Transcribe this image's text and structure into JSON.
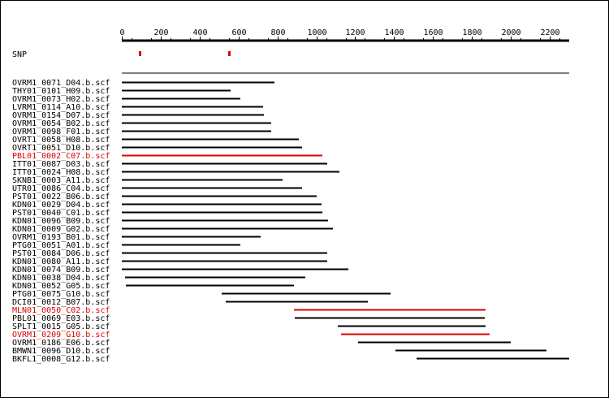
{
  "chart_data": {
    "type": "bar",
    "title": "",
    "xlabel": "",
    "ylabel": "",
    "xlim": [
      0,
      2300
    ],
    "ticks": [
      0,
      200,
      400,
      600,
      800,
      1000,
      1200,
      1400,
      1600,
      1800,
      2000,
      2200
    ],
    "grid": false,
    "snp_label": "SNP",
    "snp_positions": [
      93,
      550
    ],
    "highlight_color": "#e00000",
    "default_color": "#000000",
    "reads": [
      {
        "name": "OVRM1_0071_D04.b.scf",
        "start": 0,
        "end": 785,
        "highlight": false
      },
      {
        "name": "THY01_0101_H09.b.scf",
        "start": 0,
        "end": 560,
        "highlight": false
      },
      {
        "name": "OVRM1_0073_H02.b.scf",
        "start": 0,
        "end": 610,
        "highlight": false
      },
      {
        "name": "LVRM1_0114_A10.b.scf",
        "start": 0,
        "end": 725,
        "highlight": false
      },
      {
        "name": "OVRM1_0154_D07.b.scf",
        "start": 0,
        "end": 730,
        "highlight": false
      },
      {
        "name": "OVRM1_0054_B02.b.scf",
        "start": 0,
        "end": 770,
        "highlight": false
      },
      {
        "name": "OVRM1_0098_F01.b.scf",
        "start": 0,
        "end": 770,
        "highlight": false
      },
      {
        "name": "OVRT1_0058_H08.b.scf",
        "start": 0,
        "end": 910,
        "highlight": false
      },
      {
        "name": "OVRT1_0051_D10.b.scf",
        "start": 0,
        "end": 925,
        "highlight": false
      },
      {
        "name": "PBL01_0002_C07.b.scf",
        "start": 0,
        "end": 1030,
        "highlight": true
      },
      {
        "name": "ITT01_0087_D03.b.scf",
        "start": 0,
        "end": 1055,
        "highlight": false
      },
      {
        "name": "ITT01_0024_H08.b.scf",
        "start": 0,
        "end": 1120,
        "highlight": false
      },
      {
        "name": "SKNB1_0003_A11.b.scf",
        "start": 0,
        "end": 825,
        "highlight": false
      },
      {
        "name": "UTR01_0086_C04.b.scf",
        "start": 0,
        "end": 925,
        "highlight": false
      },
      {
        "name": "PST01_0022_B06.b.scf",
        "start": 0,
        "end": 1000,
        "highlight": false
      },
      {
        "name": "KDN01_0029_D04.b.scf",
        "start": 0,
        "end": 1025,
        "highlight": false
      },
      {
        "name": "PST01_0040_C01.b.scf",
        "start": 0,
        "end": 1030,
        "highlight": false
      },
      {
        "name": "KDN01_0096_B09.b.scf",
        "start": 0,
        "end": 1060,
        "highlight": false
      },
      {
        "name": "KDN01_0009_G02.b.scf",
        "start": 0,
        "end": 1085,
        "highlight": false
      },
      {
        "name": "OVRM1_0193_B01.b.scf",
        "start": 0,
        "end": 715,
        "highlight": false
      },
      {
        "name": "PTG01_0051_A01.b.scf",
        "start": 0,
        "end": 610,
        "highlight": false
      },
      {
        "name": "PST01_0084_D06.b.scf",
        "start": 0,
        "end": 1055,
        "highlight": false
      },
      {
        "name": "KDN01_0080_A11.b.scf",
        "start": 0,
        "end": 1055,
        "highlight": false
      },
      {
        "name": "KDN01_0074_B09.b.scf",
        "start": 0,
        "end": 1165,
        "highlight": false
      },
      {
        "name": "KDN01_0038_D04.b.scf",
        "start": 15,
        "end": 945,
        "highlight": false
      },
      {
        "name": "KDN01_0052_G05.b.scf",
        "start": 20,
        "end": 885,
        "highlight": false
      },
      {
        "name": "PTG01_0075_G10.b.scf",
        "start": 515,
        "end": 1380,
        "highlight": false
      },
      {
        "name": "DCI01_0012_B07.b.scf",
        "start": 535,
        "end": 1265,
        "highlight": false
      },
      {
        "name": "MLN01_0050_C02.b.scf",
        "start": 885,
        "end": 1870,
        "highlight": true
      },
      {
        "name": "PBL01_0069_E03.b.scf",
        "start": 890,
        "end": 1865,
        "highlight": false
      },
      {
        "name": "SPLT1_0015_G05.b.scf",
        "start": 1110,
        "end": 1870,
        "highlight": false
      },
      {
        "name": "OVRM1_0209_G10.b.scf",
        "start": 1125,
        "end": 1890,
        "highlight": true
      },
      {
        "name": "OVRM1_0186_E06.b.scf",
        "start": 1215,
        "end": 2000,
        "highlight": false
      },
      {
        "name": "BMWN1_0096_D10.b.scf",
        "start": 1405,
        "end": 2185,
        "highlight": false
      },
      {
        "name": "BKFL1_0008_G12.b.scf",
        "start": 1515,
        "end": 2300,
        "highlight": false
      }
    ]
  }
}
